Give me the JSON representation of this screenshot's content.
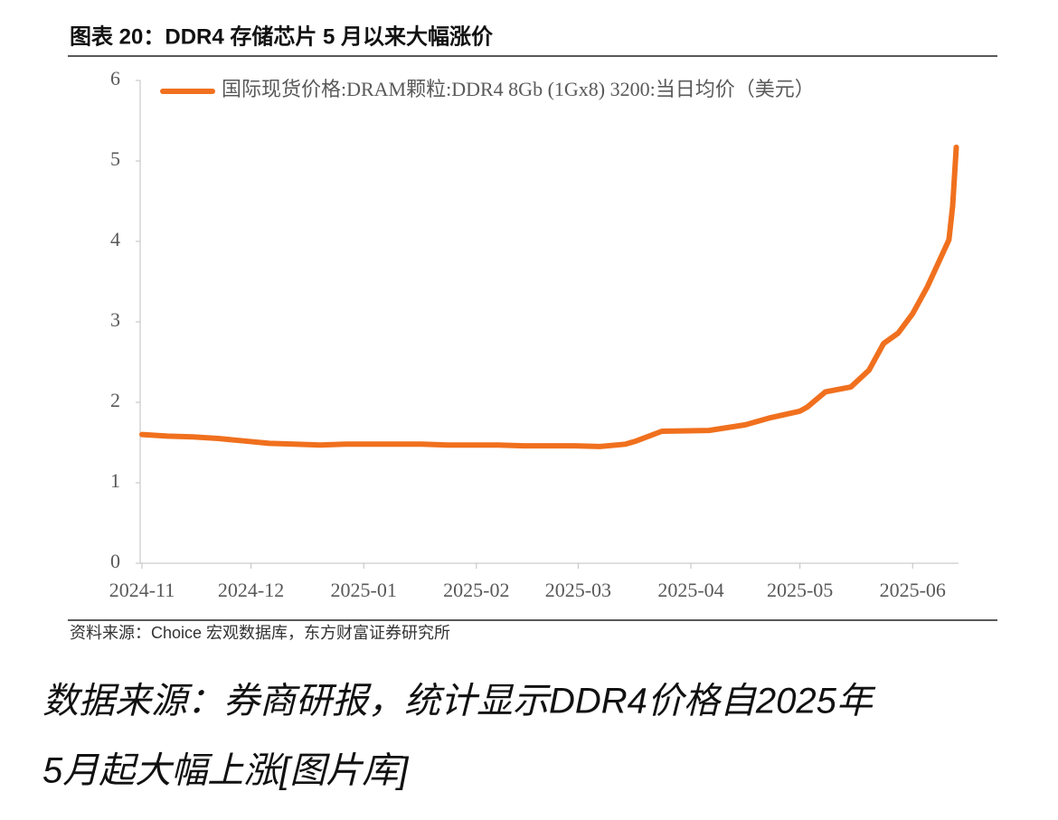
{
  "chart_data": {
    "type": "line",
    "title": "图表 20：DDR4 存储芯片 5 月以来大幅涨价",
    "source": "资料来源：Choice 宏观数据库，东方财富证券研究所",
    "caption": [
      "数据来源：券商研报，统计显示DDR4价格自2025年",
      "5月起大幅上涨[图片库]"
    ],
    "x": [
      "2024-11-01",
      "2024-11-08",
      "2024-11-15",
      "2024-11-22",
      "2024-11-29",
      "2024-12-06",
      "2024-12-13",
      "2024-12-20",
      "2024-12-27",
      "2025-01-03",
      "2025-01-10",
      "2025-01-17",
      "2025-01-24",
      "2025-01-31",
      "2025-02-07",
      "2025-02-14",
      "2025-02-21",
      "2025-02-28",
      "2025-03-07",
      "2025-03-14",
      "2025-03-17",
      "2025-03-24",
      "2025-04-06",
      "2025-04-16",
      "2025-04-23",
      "2025-05-01",
      "2025-05-03",
      "2025-05-08",
      "2025-05-15",
      "2025-05-20",
      "2025-05-24",
      "2025-05-28",
      "2025-06-01",
      "2025-06-05",
      "2025-06-11",
      "2025-06-12",
      "2025-06-13"
    ],
    "series": [
      {
        "name": "国际现货价格:DRAM颗粒:DDR4 8Gb (1Gx8) 3200:当日均价（美元）",
        "color": "#f0701e",
        "values": [
          1.6,
          1.58,
          1.57,
          1.55,
          1.52,
          1.49,
          1.48,
          1.47,
          1.48,
          1.48,
          1.48,
          1.48,
          1.47,
          1.47,
          1.47,
          1.46,
          1.46,
          1.46,
          1.45,
          1.48,
          1.52,
          1.64,
          1.65,
          1.72,
          1.81,
          1.89,
          1.94,
          2.13,
          2.19,
          2.4,
          2.73,
          2.86,
          3.1,
          3.43,
          4.02,
          4.44,
          5.17
        ]
      }
    ],
    "xticks": [
      "2024-11",
      "2024-12",
      "2025-01",
      "2025-02",
      "2025-03",
      "2025-04",
      "2025-05",
      "2025-06"
    ],
    "ylim": [
      0,
      6
    ],
    "yticks": [
      0,
      1,
      2,
      3,
      4,
      5,
      6
    ],
    "legend": "top-left"
  }
}
